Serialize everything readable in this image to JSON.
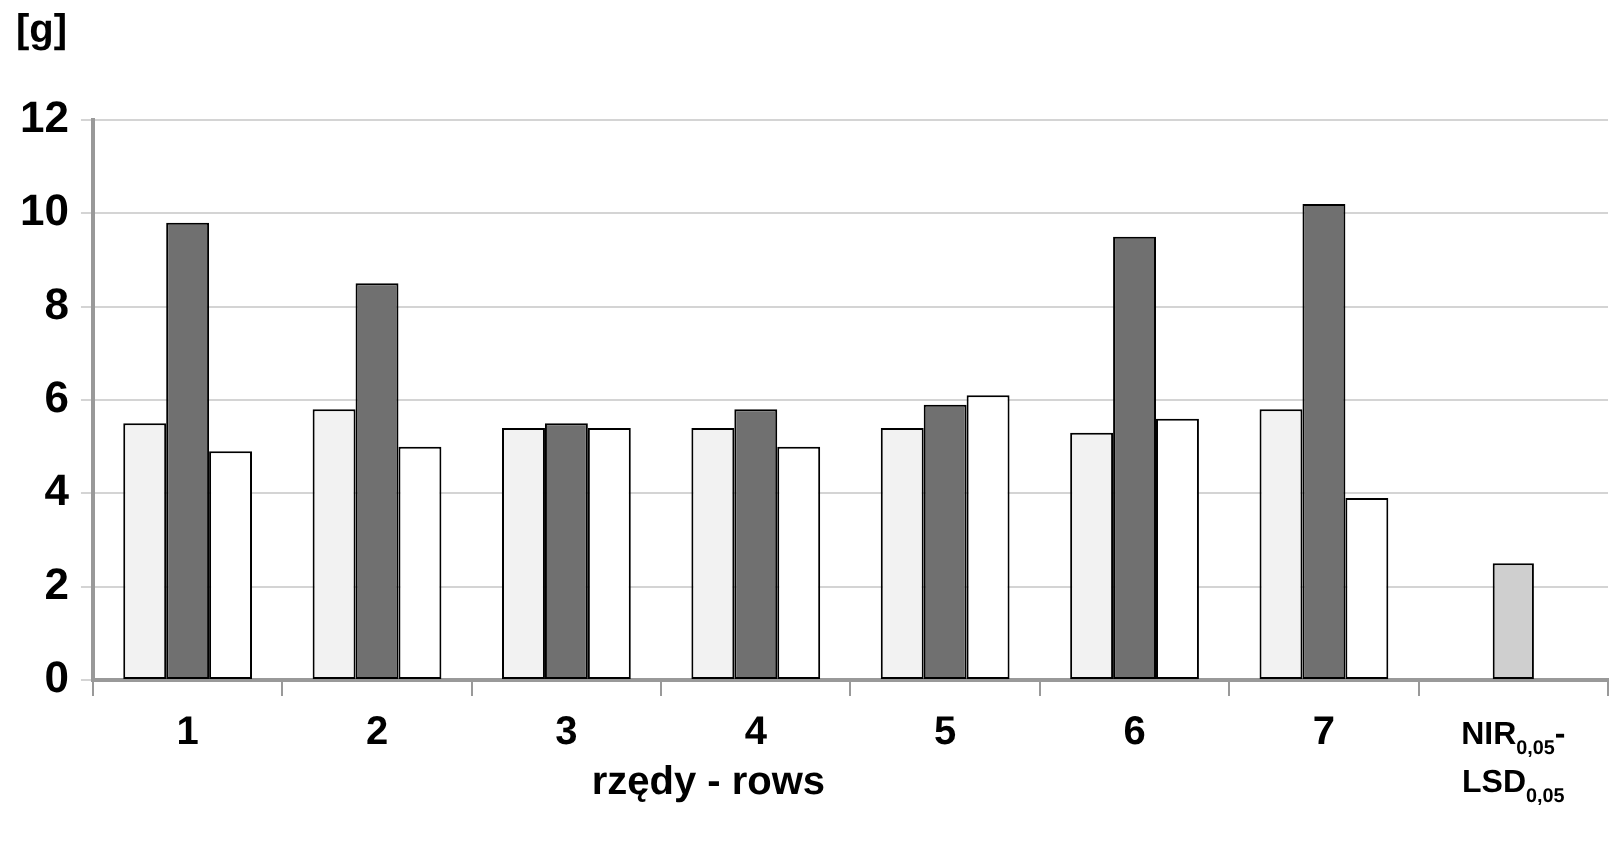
{
  "chart_data": {
    "type": "bar",
    "ylabel": "[g]",
    "xlabel": "rzędy - rows",
    "categories": [
      "1",
      "2",
      "3",
      "4",
      "5",
      "6",
      "7",
      "NIR$_{0,05}$- LSD$_{0,05}$"
    ],
    "series": [
      {
        "color": "#f2f2f2",
        "values": [
          5.5,
          5.8,
          5.4,
          5.4,
          5.4,
          5.3,
          5.8,
          null
        ]
      },
      {
        "color": "#707070",
        "values": [
          9.8,
          8.5,
          5.5,
          5.8,
          5.9,
          9.5,
          10.2,
          null
        ]
      },
      {
        "color": "#ffffff",
        "values": [
          4.9,
          5.0,
          5.4,
          5.0,
          6.1,
          5.6,
          3.9,
          null
        ]
      },
      {
        "color": "#cfcfcf",
        "values": [
          null,
          null,
          null,
          null,
          null,
          null,
          null,
          2.5
        ]
      }
    ],
    "ylim": [
      0,
      12
    ],
    "yticks": [
      0,
      2,
      4,
      6,
      8,
      10,
      12
    ],
    "grid": "y"
  }
}
